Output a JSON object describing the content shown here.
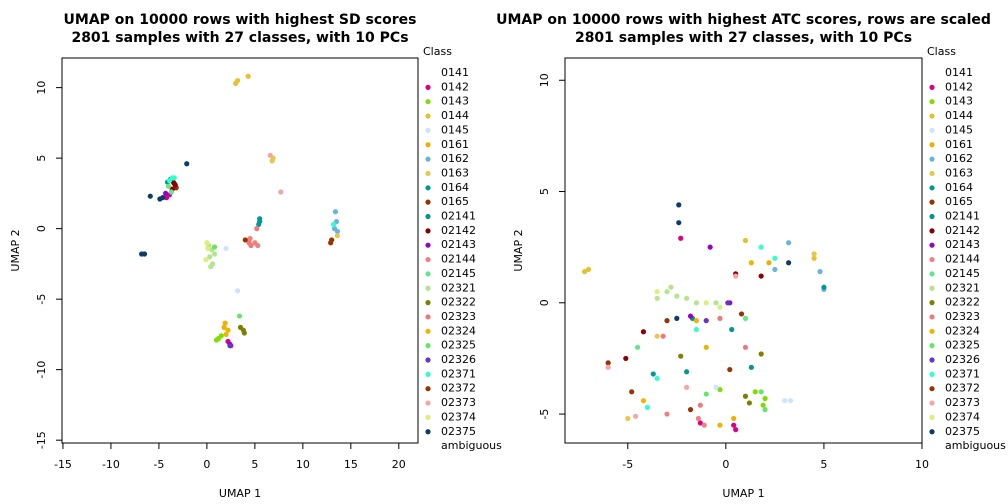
{
  "chart_data": [
    {
      "type": "scatter",
      "title": "UMAP on 10000 rows with highest SD scores",
      "subtitle": "2801 samples with 27 classes, with 10 PCs",
      "xlabel": "UMAP 1",
      "ylabel": "UMAP 2",
      "legend_title": "Class",
      "xlim": [
        -15.1,
        22
      ],
      "ylim": [
        -15.2,
        12.1
      ],
      "xticks": [
        -15,
        -10,
        -5,
        0,
        5,
        10,
        15,
        20
      ],
      "yticks": [
        -15,
        -10,
        -5,
        0,
        5,
        10
      ],
      "series": [
        {
          "name": "0141",
          "color": "#ffffff",
          "x": [],
          "y": []
        },
        {
          "name": "0142",
          "color": "#d9008c",
          "x": [
            -4.2,
            -3.9,
            2.2,
            2.5
          ],
          "y": [
            2.2,
            2.4,
            -8.0,
            -8.3
          ]
        },
        {
          "name": "0143",
          "color": "#7fdd00",
          "x": [
            1.2,
            1.5,
            1.0
          ],
          "y": [
            -7.8,
            -7.6,
            -7.9
          ]
        },
        {
          "name": "0144",
          "color": "#e6c229",
          "x": [
            3.0,
            3.2,
            4.3
          ],
          "y": [
            10.3,
            10.5,
            10.8
          ]
        },
        {
          "name": "0145",
          "color": "#cce5ff",
          "x": [
            3.2,
            2.0
          ],
          "y": [
            -4.4,
            -1.4
          ]
        },
        {
          "name": "0161",
          "color": "#f0b000",
          "x": [
            1.8,
            1.9
          ],
          "y": [
            -7.0,
            -6.7
          ]
        },
        {
          "name": "0162",
          "color": "#66b3e6",
          "x": [
            13.5,
            13.4,
            13.6,
            13.3
          ],
          "y": [
            0.5,
            1.2,
            -0.2,
            0.0
          ]
        },
        {
          "name": "0163",
          "color": "#e6c84a",
          "x": [
            6.8,
            6.9,
            13.6
          ],
          "y": [
            4.8,
            5.0,
            -0.5
          ]
        },
        {
          "name": "0164",
          "color": "#009999",
          "x": [
            5.5,
            5.4
          ],
          "y": [
            0.7,
            0.3
          ]
        },
        {
          "name": "0165",
          "color": "#993300",
          "x": [
            -3.4,
            -3.2
          ],
          "y": [
            3.2,
            2.9
          ]
        },
        {
          "name": "02141",
          "color": "#00998f",
          "x": [
            -3.8,
            -4.1,
            5.5
          ],
          "y": [
            3.5,
            3.3,
            0.5
          ]
        },
        {
          "name": "02142",
          "color": "#8b0000",
          "x": [
            -3.6,
            -3.3,
            -3.5
          ],
          "y": [
            2.8,
            3.1,
            3.3
          ]
        },
        {
          "name": "02143",
          "color": "#9900cc",
          "x": [
            -4.3,
            2.4
          ],
          "y": [
            2.5,
            -8.2
          ]
        },
        {
          "name": "02144",
          "color": "#f08080",
          "x": [
            4.5,
            5.0,
            5.3
          ],
          "y": [
            -0.7,
            -1.0,
            -1.2
          ]
        },
        {
          "name": "02145",
          "color": "#66e68c",
          "x": [
            -4.0,
            -3.7
          ],
          "y": [
            3.0,
            2.6
          ]
        },
        {
          "name": "02321",
          "color": "#b3e68c",
          "x": [
            0.5,
            0.3,
            0.6,
            0.2,
            0.8,
            0.4
          ],
          "y": [
            -1.5,
            -2.0,
            -2.5,
            -1.2,
            -1.8,
            -2.7
          ]
        },
        {
          "name": "02322",
          "color": "#808000",
          "x": [
            3.8,
            3.5,
            3.9
          ],
          "y": [
            -7.2,
            -7.0,
            -7.4
          ]
        },
        {
          "name": "02323",
          "color": "#f07878",
          "x": [
            4.4,
            4.6,
            5.2
          ],
          "y": [
            -1.0,
            -1.2,
            0.0
          ]
        },
        {
          "name": "02324",
          "color": "#f0b400",
          "x": [
            2.2,
            2.0
          ],
          "y": [
            -7.2,
            -7.5
          ]
        },
        {
          "name": "02325",
          "color": "#66e666",
          "x": [
            0.8,
            3.4
          ],
          "y": [
            -1.3,
            -6.2
          ]
        },
        {
          "name": "02326",
          "color": "#6633cc",
          "x": [
            2.4
          ],
          "y": [
            -8.3
          ]
        },
        {
          "name": "02371",
          "color": "#33ffcc",
          "x": [
            -3.6,
            -3.9,
            -3.4,
            13.2
          ],
          "y": [
            3.6,
            3.4,
            3.6,
            0.3
          ]
        },
        {
          "name": "02372",
          "color": "#993300",
          "x": [
            12.9,
            13.0,
            4.0
          ],
          "y": [
            -1.0,
            -0.8,
            -0.8
          ]
        },
        {
          "name": "02373",
          "color": "#f4a6a6",
          "x": [
            6.6,
            7.7
          ],
          "y": [
            5.2,
            2.6
          ]
        },
        {
          "name": "02374",
          "color": "#d9f07a",
          "x": [
            -0.1,
            0.1,
            0.0
          ],
          "y": [
            -2.2,
            -1.4,
            -1.0
          ]
        },
        {
          "name": "02375",
          "color": "#0a3d6b",
          "x": [
            -2.1,
            -6.5,
            -6.8,
            -5.9,
            -4.9,
            -4.6
          ],
          "y": [
            4.6,
            -1.8,
            -1.8,
            2.3,
            2.1,
            2.2
          ]
        },
        {
          "name": "ambiguous",
          "color": "#ffffff",
          "x": [],
          "y": []
        }
      ]
    },
    {
      "type": "scatter",
      "title": "UMAP on 10000 rows with highest ATC scores, rows are scaled",
      "subtitle": "2801 samples with 27 classes, with 10 PCs",
      "xlabel": "UMAP 1",
      "ylabel": "UMAP 2",
      "legend_title": "Class",
      "xlim": [
        -8.2,
        10
      ],
      "ylim": [
        -6.3,
        11.0
      ],
      "xticks": [
        -5,
        0,
        5,
        10
      ],
      "yticks": [
        -5,
        0,
        5,
        10
      ],
      "series": [
        {
          "name": "0141",
          "color": "#ffffff",
          "x": [],
          "y": []
        },
        {
          "name": "0142",
          "color": "#d9008c",
          "x": [
            -2.3,
            0.5,
            0.4,
            -1.3
          ],
          "y": [
            2.9,
            -5.7,
            -5.5,
            -5.4
          ]
        },
        {
          "name": "0143",
          "color": "#7fdd00",
          "x": [
            2.0,
            1.9,
            1.5,
            -0.3
          ],
          "y": [
            -4.3,
            -4.6,
            -4.0,
            -3.9
          ]
        },
        {
          "name": "0144",
          "color": "#e6c229",
          "x": [
            -7.2,
            -7.0,
            1.0,
            4.5
          ],
          "y": [
            1.4,
            1.5,
            2.8,
            2.0
          ]
        },
        {
          "name": "0145",
          "color": "#cce5ff",
          "x": [
            3.0,
            3.3,
            -0.5
          ],
          "y": [
            -4.4,
            -4.4,
            -3.8
          ]
        },
        {
          "name": "0161",
          "color": "#f0b000",
          "x": [
            2.2,
            -1.0,
            0.4
          ],
          "y": [
            1.8,
            -2.0,
            -5.2
          ]
        },
        {
          "name": "0162",
          "color": "#66b3e6",
          "x": [
            3.2,
            4.8,
            5.0,
            2.5
          ],
          "y": [
            2.7,
            1.4,
            0.6,
            1.5
          ]
        },
        {
          "name": "0163",
          "color": "#e6c84a",
          "x": [
            4.5,
            -5.0,
            -3.5
          ],
          "y": [
            2.2,
            -5.2,
            -1.5
          ]
        },
        {
          "name": "0164",
          "color": "#009999",
          "x": [
            -3.7,
            5.0,
            0.3
          ],
          "y": [
            -3.2,
            0.7,
            -1.2
          ]
        },
        {
          "name": "0165",
          "color": "#993300",
          "x": [
            -4.8,
            0.8
          ],
          "y": [
            -4.0,
            -0.5
          ]
        },
        {
          "name": "02141",
          "color": "#00998f",
          "x": [
            1.3,
            -1.7,
            -2.0
          ],
          "y": [
            -2.9,
            -0.7,
            -3.1
          ]
        },
        {
          "name": "02142",
          "color": "#8b0000",
          "x": [
            0.5,
            -4.2,
            1.8,
            -5.1
          ],
          "y": [
            1.3,
            -1.3,
            1.2,
            -2.5
          ]
        },
        {
          "name": "02143",
          "color": "#9900cc",
          "x": [
            -0.8,
            0.2,
            -1.8
          ],
          "y": [
            2.5,
            0.0,
            -0.6
          ]
        },
        {
          "name": "02144",
          "color": "#f08080",
          "x": [
            -1.4,
            -1.1,
            -3.0
          ],
          "y": [
            -5.2,
            -5.5,
            -5.0
          ]
        },
        {
          "name": "02145",
          "color": "#66e68c",
          "x": [
            1.0,
            -4.5
          ],
          "y": [
            -0.7,
            -2.0
          ]
        },
        {
          "name": "02321",
          "color": "#b3e68c",
          "x": [
            -3.0,
            -2.5,
            -2.0,
            -1.5,
            -0.5,
            -3.5,
            -2.8
          ],
          "y": [
            0.5,
            0.3,
            0.2,
            0.0,
            0.0,
            0.2,
            0.7
          ]
        },
        {
          "name": "02322",
          "color": "#808000",
          "x": [
            1.8,
            1.0,
            1.2,
            -2.3
          ],
          "y": [
            -2.3,
            -4.2,
            -4.5,
            -2.4
          ]
        },
        {
          "name": "02323",
          "color": "#f07878",
          "x": [
            -3.2,
            -0.3,
            1.0,
            -1.3
          ],
          "y": [
            -1.5,
            -0.7,
            -2.0,
            -4.6
          ]
        },
        {
          "name": "02324",
          "color": "#f0b400",
          "x": [
            -4.2,
            -0.3,
            1.3,
            -1.5
          ],
          "y": [
            -4.4,
            -5.5,
            1.8,
            -0.8
          ]
        },
        {
          "name": "02325",
          "color": "#66e666",
          "x": [
            2.0,
            1.8,
            -1.0
          ],
          "y": [
            -4.8,
            -4.0,
            -4.1
          ]
        },
        {
          "name": "02326",
          "color": "#6633cc",
          "x": [
            0.1,
            -1.0
          ],
          "y": [
            0.0,
            -0.8
          ]
        },
        {
          "name": "02371",
          "color": "#33ffcc",
          "x": [
            -3.5,
            2.5,
            -1.5,
            1.8,
            -4.0
          ],
          "y": [
            -3.4,
            2.0,
            -1.2,
            2.5,
            -4.7
          ]
        },
        {
          "name": "02372",
          "color": "#993300",
          "x": [
            -3.0,
            0.2,
            -1.8,
            -6.0
          ],
          "y": [
            -0.8,
            -3.0,
            -4.8,
            -2.7
          ]
        },
        {
          "name": "02373",
          "color": "#f4a6a6",
          "x": [
            -4.6,
            -2.0,
            0.5,
            -6.0
          ],
          "y": [
            -5.1,
            -3.8,
            1.2,
            -2.9
          ]
        },
        {
          "name": "02374",
          "color": "#d9f07a",
          "x": [
            -1.0,
            -0.3,
            -3.5
          ],
          "y": [
            0.0,
            -0.2,
            0.5
          ]
        },
        {
          "name": "02375",
          "color": "#0a3d6b",
          "x": [
            -2.4,
            -2.4,
            3.2,
            -2.5
          ],
          "y": [
            4.4,
            3.6,
            1.8,
            -0.7
          ]
        },
        {
          "name": "ambiguous",
          "color": "#ffffff",
          "x": [],
          "y": []
        }
      ]
    }
  ]
}
